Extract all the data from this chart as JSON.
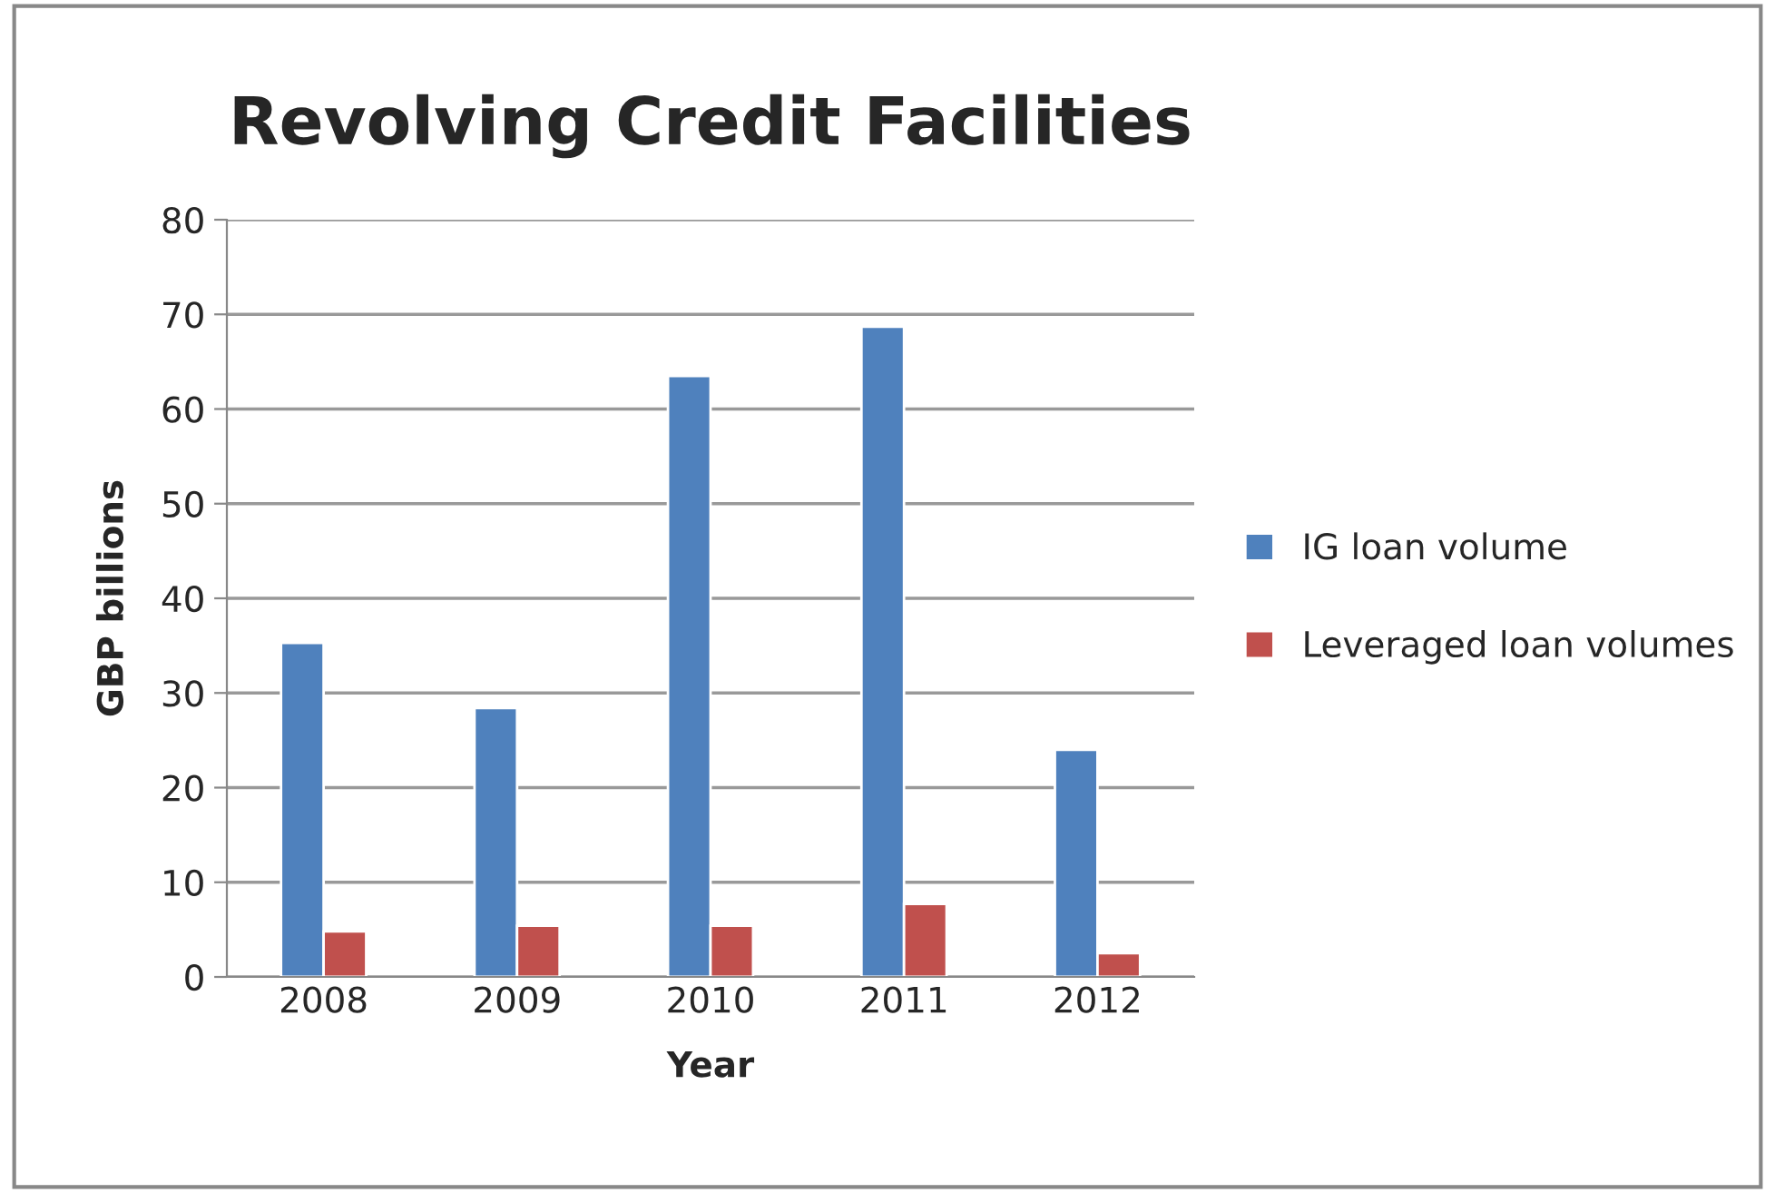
{
  "chart_data": {
    "type": "bar",
    "title": "Revolving Credit Facilities",
    "xlabel": "Year",
    "ylabel": "GBP billions",
    "categories": [
      "2008",
      "2009",
      "2010",
      "2011",
      "2012"
    ],
    "series": [
      {
        "name": "IG loan volume",
        "color": "#4f81bd",
        "values": [
          35.3,
          28.4,
          63.5,
          68.7,
          24.0
        ]
      },
      {
        "name": "Leveraged loan volumes",
        "color": "#c0504d",
        "values": [
          4.8,
          5.4,
          5.4,
          7.7,
          2.5
        ]
      }
    ],
    "ylim": [
      0,
      80
    ],
    "yticks": [
      0,
      10,
      20,
      30,
      40,
      50,
      60,
      70,
      80
    ],
    "grid": "y",
    "legend": "right"
  }
}
